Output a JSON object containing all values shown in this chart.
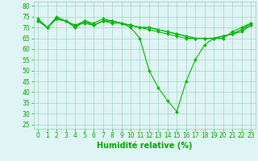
{
  "series": [
    [
      73,
      70,
      74,
      73,
      70,
      73,
      71,
      73,
      73,
      72,
      70,
      65,
      50,
      42,
      36,
      31,
      45,
      55,
      62,
      65,
      65,
      68,
      70,
      72
    ],
    [
      73,
      70,
      75,
      73,
      71,
      72,
      71,
      73,
      73,
      72,
      71,
      70,
      69,
      68,
      67,
      66,
      65,
      65,
      65,
      65,
      66,
      67,
      68,
      71
    ],
    [
      74,
      70,
      74,
      73,
      70,
      73,
      72,
      74,
      73,
      72,
      71,
      70,
      70,
      69,
      68,
      67,
      66,
      65,
      65,
      65,
      66,
      67,
      69,
      72
    ],
    [
      73,
      70,
      74,
      73,
      71,
      73,
      71,
      73,
      72,
      72,
      71,
      70,
      70,
      69,
      68,
      67,
      66,
      65,
      65,
      65,
      66,
      67,
      69,
      71
    ]
  ],
  "x": [
    0,
    1,
    2,
    3,
    4,
    5,
    6,
    7,
    8,
    9,
    10,
    11,
    12,
    13,
    14,
    15,
    16,
    17,
    18,
    19,
    20,
    21,
    22,
    23
  ],
  "line_color": "#00bb00",
  "marker": "D",
  "marker_size": 2.0,
  "line_width": 0.8,
  "bg_color": "#dff4f4",
  "grid_color": "#99ccbb",
  "xlabel": "Humidité relative (%)",
  "xlabel_color": "#00aa00",
  "xlabel_fontsize": 7.0,
  "tick_color": "#00aa00",
  "tick_fontsize": 5.5,
  "ylim": [
    23,
    82
  ],
  "yticks": [
    25,
    30,
    35,
    40,
    45,
    50,
    55,
    60,
    65,
    70,
    75,
    80
  ],
  "xlim": [
    -0.5,
    23.5
  ],
  "xticks": [
    0,
    1,
    2,
    3,
    4,
    5,
    6,
    7,
    8,
    9,
    10,
    11,
    12,
    13,
    14,
    15,
    16,
    17,
    18,
    19,
    20,
    21,
    22,
    23
  ],
  "xtick_labels": [
    "0",
    "1",
    "2",
    "3",
    "4",
    "5",
    "6",
    "7",
    "8",
    "9",
    "10",
    "11",
    "12",
    "13",
    "14",
    "15",
    "16",
    "17",
    "18",
    "19",
    "20",
    "21",
    "22",
    "23"
  ]
}
